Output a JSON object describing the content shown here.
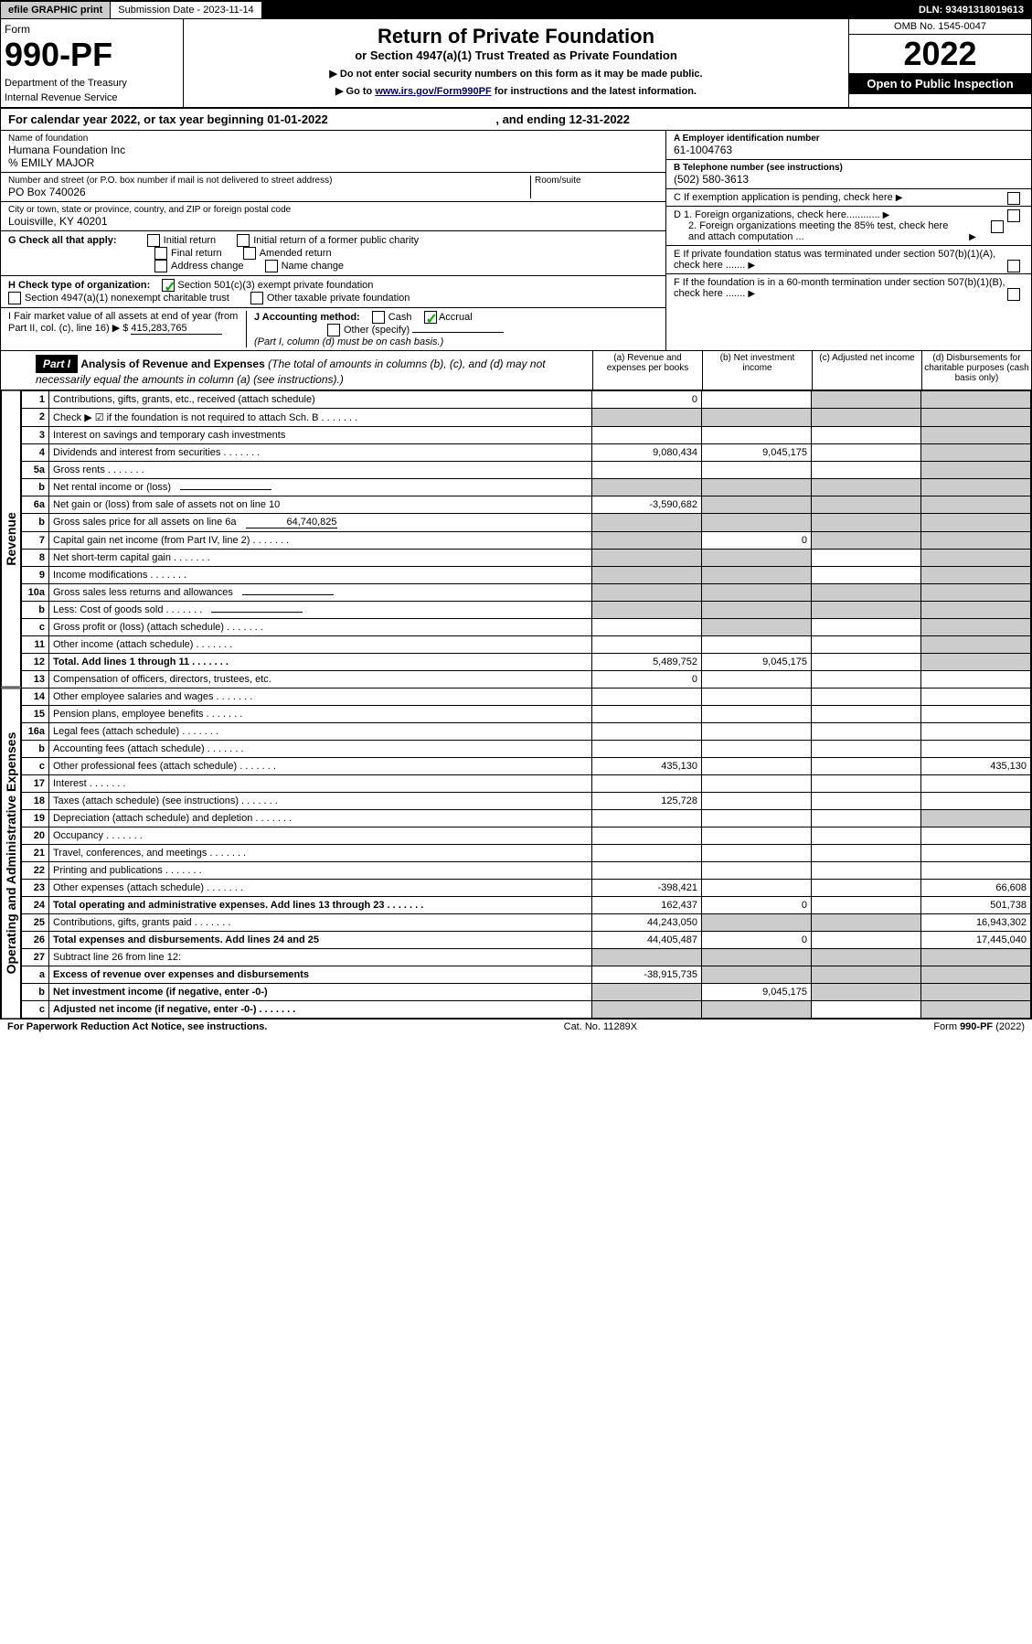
{
  "header": {
    "efile": "efile GRAPHIC print",
    "subdate_label": "Submission Date - 2023-11-14",
    "dln": "DLN: 93491318019613",
    "form_label": "Form",
    "form_num": "990-PF",
    "dept1": "Department of the Treasury",
    "dept2": "Internal Revenue Service",
    "title": "Return of Private Foundation",
    "subtitle": "or Section 4947(a)(1) Trust Treated as Private Foundation",
    "instr1": "▶ Do not enter social security numbers on this form as it may be made public.",
    "instr2_pre": "▶ Go to ",
    "instr2_link": "www.irs.gov/Form990PF",
    "instr2_post": " for instructions and the latest information.",
    "omb": "OMB No. 1545-0047",
    "year": "2022",
    "open": "Open to Public Inspection"
  },
  "yearline": {
    "pre": "For calendar year 2022, or tax year beginning ",
    "begin": "01-01-2022",
    "mid": " , and ending ",
    "end": "12-31-2022"
  },
  "entity": {
    "name_lbl": "Name of foundation",
    "name": "Humana Foundation Inc",
    "co": "% EMILY MAJOR",
    "addr_lbl": "Number and street (or P.O. box number if mail is not delivered to street address)",
    "addr": "PO Box 740026",
    "room_lbl": "Room/suite",
    "city_lbl": "City or town, state or province, country, and ZIP or foreign postal code",
    "city": "Louisville, KY  40201",
    "ein_lbl": "A Employer identification number",
    "ein": "61-1004763",
    "tel_lbl": "B Telephone number (see instructions)",
    "tel": "(502) 580-3613",
    "c_lbl": "C If exemption application is pending, check here",
    "d1": "D 1. Foreign organizations, check here............",
    "d2": "2. Foreign organizations meeting the 85% test, check here and attach computation ...",
    "e": "E If private foundation status was terminated under section 507(b)(1)(A), check here .......",
    "f": "F If the foundation is in a 60-month termination under section 507(b)(1)(B), check here .......",
    "g_lbl": "G Check all that apply:",
    "g_opts": [
      "Initial return",
      "Initial return of a former public charity",
      "Final return",
      "Amended return",
      "Address change",
      "Name change"
    ],
    "h_lbl": "H Check type of organization:",
    "h1": "Section 501(c)(3) exempt private foundation",
    "h2": "Section 4947(a)(1) nonexempt charitable trust",
    "h3": "Other taxable private foundation",
    "i_lbl": "I Fair market value of all assets at end of year (from Part II, col. (c), line 16) ▶ $",
    "i_val": "415,283,765",
    "j_lbl": "J Accounting method:",
    "j_cash": "Cash",
    "j_acc": "Accrual",
    "j_other": "Other (specify)",
    "j_note": "(Part I, column (d) must be on cash basis.)"
  },
  "part1": {
    "hdr": "Part I",
    "title": "Analysis of Revenue and Expenses",
    "note": "(The total of amounts in columns (b), (c), and (d) may not necessarily equal the amounts in column (a) (see instructions).)",
    "col_a": "(a) Revenue and expenses per books",
    "col_b": "(b) Net investment income",
    "col_c": "(c) Adjusted net income",
    "col_d": "(d) Disbursements for charitable purposes (cash basis only)",
    "rev_label": "Revenue",
    "exp_label": "Operating and Administrative Expenses"
  },
  "rows": [
    {
      "ln": "1",
      "desc": "Contributions, gifts, grants, etc., received (attach schedule)",
      "a": "0",
      "b": "",
      "c": "shade",
      "d": "shade"
    },
    {
      "ln": "2",
      "desc": "Check ▶ ☑ if the foundation is not required to attach Sch. B",
      "dots": true,
      "a": "shade",
      "b": "shade",
      "c": "shade",
      "d": "shade"
    },
    {
      "ln": "3",
      "desc": "Interest on savings and temporary cash investments",
      "a": "",
      "b": "",
      "c": "",
      "d": "shade"
    },
    {
      "ln": "4",
      "desc": "Dividends and interest from securities",
      "dots": true,
      "a": "9,080,434",
      "b": "9,045,175",
      "c": "",
      "d": "shade"
    },
    {
      "ln": "5a",
      "desc": "Gross rents",
      "dots": true,
      "a": "",
      "b": "",
      "c": "",
      "d": "shade"
    },
    {
      "ln": "b",
      "desc": "Net rental income or (loss)",
      "inline": "",
      "a": "shade",
      "b": "shade",
      "c": "shade",
      "d": "shade"
    },
    {
      "ln": "6a",
      "desc": "Net gain or (loss) from sale of assets not on line 10",
      "a": "-3,590,682",
      "b": "shade",
      "c": "shade",
      "d": "shade"
    },
    {
      "ln": "b",
      "desc": "Gross sales price for all assets on line 6a",
      "inline": "64,740,825",
      "a": "shade",
      "b": "shade",
      "c": "shade",
      "d": "shade"
    },
    {
      "ln": "7",
      "desc": "Capital gain net income (from Part IV, line 2)",
      "dots": true,
      "a": "shade",
      "b": "0",
      "c": "shade",
      "d": "shade"
    },
    {
      "ln": "8",
      "desc": "Net short-term capital gain",
      "dots": true,
      "a": "shade",
      "b": "shade",
      "c": "",
      "d": "shade"
    },
    {
      "ln": "9",
      "desc": "Income modifications",
      "dots": true,
      "a": "shade",
      "b": "shade",
      "c": "",
      "d": "shade"
    },
    {
      "ln": "10a",
      "desc": "Gross sales less returns and allowances",
      "inline": "",
      "a": "shade",
      "b": "shade",
      "c": "shade",
      "d": "shade"
    },
    {
      "ln": "b",
      "desc": "Less: Cost of goods sold",
      "dots": true,
      "inline": "",
      "a": "shade",
      "b": "shade",
      "c": "shade",
      "d": "shade"
    },
    {
      "ln": "c",
      "desc": "Gross profit or (loss) (attach schedule)",
      "dots": true,
      "a": "",
      "b": "shade",
      "c": "",
      "d": "shade"
    },
    {
      "ln": "11",
      "desc": "Other income (attach schedule)",
      "dots": true,
      "a": "",
      "b": "",
      "c": "",
      "d": "shade"
    },
    {
      "ln": "12",
      "desc": "Total. Add lines 1 through 11",
      "bold": true,
      "dots": true,
      "a": "5,489,752",
      "b": "9,045,175",
      "c": "",
      "d": "shade"
    },
    {
      "ln": "13",
      "desc": "Compensation of officers, directors, trustees, etc.",
      "a": "0",
      "b": "",
      "c": "",
      "d": ""
    },
    {
      "ln": "14",
      "desc": "Other employee salaries and wages",
      "dots": true,
      "a": "",
      "b": "",
      "c": "",
      "d": ""
    },
    {
      "ln": "15",
      "desc": "Pension plans, employee benefits",
      "dots": true,
      "a": "",
      "b": "",
      "c": "",
      "d": ""
    },
    {
      "ln": "16a",
      "desc": "Legal fees (attach schedule)",
      "dots": true,
      "a": "",
      "b": "",
      "c": "",
      "d": ""
    },
    {
      "ln": "b",
      "desc": "Accounting fees (attach schedule)",
      "dots": true,
      "a": "",
      "b": "",
      "c": "",
      "d": ""
    },
    {
      "ln": "c",
      "desc": "Other professional fees (attach schedule)",
      "dots": true,
      "a": "435,130",
      "b": "",
      "c": "",
      "d": "435,130"
    },
    {
      "ln": "17",
      "desc": "Interest",
      "dots": true,
      "a": "",
      "b": "",
      "c": "",
      "d": ""
    },
    {
      "ln": "18",
      "desc": "Taxes (attach schedule) (see instructions)",
      "dots": true,
      "a": "125,728",
      "b": "",
      "c": "",
      "d": ""
    },
    {
      "ln": "19",
      "desc": "Depreciation (attach schedule) and depletion",
      "dots": true,
      "a": "",
      "b": "",
      "c": "",
      "d": "shade"
    },
    {
      "ln": "20",
      "desc": "Occupancy",
      "dots": true,
      "a": "",
      "b": "",
      "c": "",
      "d": ""
    },
    {
      "ln": "21",
      "desc": "Travel, conferences, and meetings",
      "dots": true,
      "a": "",
      "b": "",
      "c": "",
      "d": ""
    },
    {
      "ln": "22",
      "desc": "Printing and publications",
      "dots": true,
      "a": "",
      "b": "",
      "c": "",
      "d": ""
    },
    {
      "ln": "23",
      "desc": "Other expenses (attach schedule)",
      "dots": true,
      "a": "-398,421",
      "b": "",
      "c": "",
      "d": "66,608"
    },
    {
      "ln": "24",
      "desc": "Total operating and administrative expenses. Add lines 13 through 23",
      "bold": true,
      "dots": true,
      "a": "162,437",
      "b": "0",
      "c": "",
      "d": "501,738"
    },
    {
      "ln": "25",
      "desc": "Contributions, gifts, grants paid",
      "dots": true,
      "a": "44,243,050",
      "b": "shade",
      "c": "shade",
      "d": "16,943,302"
    },
    {
      "ln": "26",
      "desc": "Total expenses and disbursements. Add lines 24 and 25",
      "bold": true,
      "a": "44,405,487",
      "b": "0",
      "c": "",
      "d": "17,445,040"
    },
    {
      "ln": "27",
      "desc": "Subtract line 26 from line 12:",
      "a": "shade",
      "b": "shade",
      "c": "shade",
      "d": "shade"
    },
    {
      "ln": "a",
      "desc": "Excess of revenue over expenses and disbursements",
      "bold": true,
      "a": "-38,915,735",
      "b": "shade",
      "c": "shade",
      "d": "shade"
    },
    {
      "ln": "b",
      "desc": "Net investment income (if negative, enter -0-)",
      "bold": true,
      "a": "shade",
      "b": "9,045,175",
      "c": "shade",
      "d": "shade"
    },
    {
      "ln": "c",
      "desc": "Adjusted net income (if negative, enter -0-)",
      "bold": true,
      "dots": true,
      "a": "shade",
      "b": "shade",
      "c": "",
      "d": "shade"
    }
  ],
  "footer": {
    "left": "For Paperwork Reduction Act Notice, see instructions.",
    "mid": "Cat. No. 11289X",
    "right": "Form 990-PF (2022)"
  }
}
